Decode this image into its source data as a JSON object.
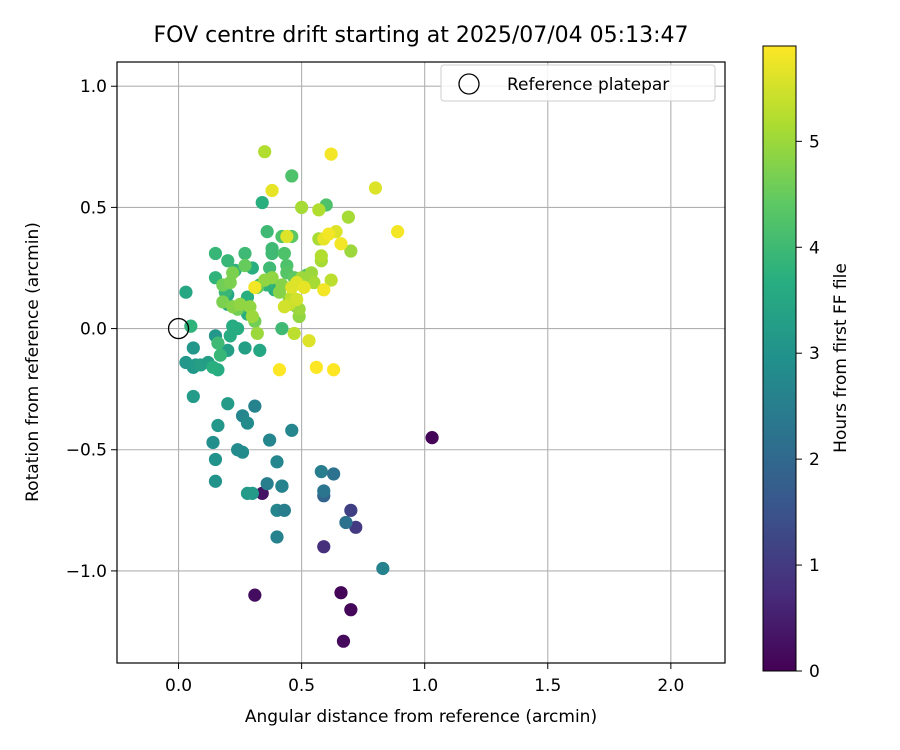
{
  "chart_data": {
    "type": "scatter",
    "title": "FOV centre drift starting at 2025/07/04 05:13:47",
    "xlabel": "Angular distance from reference (arcmin)",
    "ylabel": "Rotation from reference (arcmin)",
    "xlim": [
      -0.25,
      2.22
    ],
    "ylim": [
      -1.38,
      1.1
    ],
    "xticks": [
      0.0,
      0.5,
      1.0,
      1.5,
      2.0
    ],
    "xtick_labels": [
      "0.0",
      "0.5",
      "1.0",
      "1.5",
      "2.0"
    ],
    "yticks": [
      -1.0,
      -0.5,
      0.0,
      0.5,
      1.0
    ],
    "ytick_labels": [
      "−1.0",
      "−0.5",
      "0.0",
      "0.5",
      "1.0"
    ],
    "grid": true,
    "legend": {
      "label": "Reference platepar",
      "placement": "top-right",
      "marker": "hollow-circle"
    },
    "reference_point": {
      "x": 0.0,
      "y": 0.0
    },
    "colorbar": {
      "label": "Hours from first FF file",
      "colormap": "viridis",
      "range": [
        0,
        5.9
      ],
      "ticks": [
        0,
        1,
        2,
        3,
        4,
        5
      ],
      "tick_labels": [
        "0",
        "1",
        "2",
        "3",
        "4",
        "5"
      ]
    },
    "series": [
      {
        "values": [
          {
            "x": 1.03,
            "y": -0.45,
            "h": 0.05
          },
          {
            "x": 0.66,
            "y": -1.09,
            "h": 0.05
          },
          {
            "x": 0.7,
            "y": -1.16,
            "h": 0.1
          },
          {
            "x": 0.67,
            "y": -1.29,
            "h": 0.15
          },
          {
            "x": 0.31,
            "y": -1.1,
            "h": 0.2
          },
          {
            "x": 0.34,
            "y": -0.68,
            "h": 0.3
          },
          {
            "x": 0.59,
            "y": -0.9,
            "h": 0.8
          },
          {
            "x": 0.72,
            "y": -0.82,
            "h": 1.0
          },
          {
            "x": 0.7,
            "y": -0.75,
            "h": 1.1
          },
          {
            "x": 0.59,
            "y": -0.69,
            "h": 1.9
          },
          {
            "x": 0.68,
            "y": -0.8,
            "h": 2.2
          },
          {
            "x": 0.59,
            "y": -0.67,
            "h": 2.3
          },
          {
            "x": 0.63,
            "y": -0.6,
            "h": 2.2
          },
          {
            "x": 0.58,
            "y": -0.59,
            "h": 2.5
          },
          {
            "x": 0.83,
            "y": -0.99,
            "h": 2.6
          },
          {
            "x": 0.4,
            "y": -0.86,
            "h": 2.6
          },
          {
            "x": 0.4,
            "y": -0.75,
            "h": 2.7
          },
          {
            "x": 0.43,
            "y": -0.75,
            "h": 2.5
          },
          {
            "x": 0.42,
            "y": -0.65,
            "h": 2.4
          },
          {
            "x": 0.36,
            "y": -0.64,
            "h": 2.5
          },
          {
            "x": 0.42,
            "y": -0.65,
            "h": 2.6
          },
          {
            "x": 0.4,
            "y": -0.55,
            "h": 2.7
          },
          {
            "x": 0.37,
            "y": -0.46,
            "h": 2.7
          },
          {
            "x": 0.46,
            "y": -0.42,
            "h": 2.7
          },
          {
            "x": 0.31,
            "y": -0.32,
            "h": 2.6
          },
          {
            "x": 0.26,
            "y": -0.36,
            "h": 2.7
          },
          {
            "x": 0.28,
            "y": -0.39,
            "h": 2.8
          },
          {
            "x": 0.24,
            "y": -0.5,
            "h": 2.8
          },
          {
            "x": 0.26,
            "y": -0.51,
            "h": 2.8
          },
          {
            "x": 0.28,
            "y": -0.68,
            "h": 3.2
          },
          {
            "x": 0.3,
            "y": -0.68,
            "h": 3.2
          },
          {
            "x": 0.14,
            "y": -0.47,
            "h": 2.9
          },
          {
            "x": 0.15,
            "y": -0.54,
            "h": 3.0
          },
          {
            "x": 0.15,
            "y": -0.63,
            "h": 3.0
          },
          {
            "x": 0.16,
            "y": -0.4,
            "h": 3.1
          },
          {
            "x": 0.2,
            "y": -0.31,
            "h": 3.2
          },
          {
            "x": 0.06,
            "y": -0.28,
            "h": 3.2
          },
          {
            "x": 0.03,
            "y": -0.14,
            "h": 3.1
          },
          {
            "x": 0.06,
            "y": -0.16,
            "h": 3.1
          },
          {
            "x": 0.07,
            "y": -0.15,
            "h": 3.2
          },
          {
            "x": 0.09,
            "y": -0.15,
            "h": 3.3
          },
          {
            "x": 0.12,
            "y": -0.14,
            "h": 3.3
          },
          {
            "x": 0.06,
            "y": -0.08,
            "h": 3.1
          },
          {
            "x": 0.15,
            "y": -0.03,
            "h": 3.1
          },
          {
            "x": 0.2,
            "y": -0.09,
            "h": 3.3
          },
          {
            "x": 0.27,
            "y": -0.08,
            "h": 3.3
          },
          {
            "x": 0.33,
            "y": -0.09,
            "h": 3.5
          },
          {
            "x": 0.21,
            "y": -0.03,
            "h": 3.6
          },
          {
            "x": 0.16,
            "y": -0.17,
            "h": 3.6
          },
          {
            "x": 0.14,
            "y": -0.16,
            "h": 3.7
          },
          {
            "x": 0.17,
            "y": -0.11,
            "h": 3.9
          },
          {
            "x": 0.16,
            "y": -0.06,
            "h": 4.0
          },
          {
            "x": 0.03,
            "y": 0.15,
            "h": 3.5
          },
          {
            "x": 0.05,
            "y": 0.01,
            "h": 3.8
          },
          {
            "x": 0.2,
            "y": 0.14,
            "h": 3.5
          },
          {
            "x": 0.2,
            "y": 0.1,
            "h": 3.5
          },
          {
            "x": 0.22,
            "y": 0.01,
            "h": 3.6
          },
          {
            "x": 0.24,
            "y": 0.0,
            "h": 3.6
          },
          {
            "x": 0.28,
            "y": 0.06,
            "h": 3.7
          },
          {
            "x": 0.28,
            "y": 0.13,
            "h": 3.7
          },
          {
            "x": 0.3,
            "y": 0.25,
            "h": 3.7
          },
          {
            "x": 0.23,
            "y": 0.24,
            "h": 3.8
          },
          {
            "x": 0.15,
            "y": 0.21,
            "h": 3.8
          },
          {
            "x": 0.19,
            "y": 0.15,
            "h": 3.9
          },
          {
            "x": 0.15,
            "y": 0.31,
            "h": 3.9
          },
          {
            "x": 0.2,
            "y": 0.28,
            "h": 3.9
          },
          {
            "x": 0.27,
            "y": 0.31,
            "h": 4.0
          },
          {
            "x": 0.25,
            "y": 0.09,
            "h": 4.0
          },
          {
            "x": 0.34,
            "y": 0.52,
            "h": 3.7
          },
          {
            "x": 0.39,
            "y": 0.16,
            "h": 3.7
          },
          {
            "x": 0.36,
            "y": 0.18,
            "h": 3.8
          },
          {
            "x": 0.33,
            "y": 0.18,
            "h": 3.9
          },
          {
            "x": 0.37,
            "y": 0.25,
            "h": 4.0
          },
          {
            "x": 0.38,
            "y": 0.31,
            "h": 4.0
          },
          {
            "x": 0.38,
            "y": 0.33,
            "h": 4.0
          },
          {
            "x": 0.36,
            "y": 0.4,
            "h": 4.0
          },
          {
            "x": 0.42,
            "y": 0.38,
            "h": 4.2
          },
          {
            "x": 0.43,
            "y": 0.31,
            "h": 4.2
          },
          {
            "x": 0.44,
            "y": 0.26,
            "h": 4.2
          },
          {
            "x": 0.44,
            "y": 0.23,
            "h": 4.3
          },
          {
            "x": 0.42,
            "y": 0.0,
            "h": 4.0
          },
          {
            "x": 0.48,
            "y": 0.09,
            "h": 4.5
          },
          {
            "x": 0.46,
            "y": 0.63,
            "h": 4.2
          },
          {
            "x": 0.6,
            "y": 0.51,
            "h": 4.2
          },
          {
            "x": 0.52,
            "y": 0.22,
            "h": 4.3
          },
          {
            "x": 0.47,
            "y": 0.21,
            "h": 4.4
          },
          {
            "x": 0.46,
            "y": 0.38,
            "h": 4.4
          },
          {
            "x": 0.27,
            "y": 0.26,
            "h": 4.5
          },
          {
            "x": 0.32,
            "y": 0.17,
            "h": 4.5
          },
          {
            "x": 0.31,
            "y": 0.03,
            "h": 4.6
          },
          {
            "x": 0.24,
            "y": 0.08,
            "h": 4.6
          },
          {
            "x": 0.22,
            "y": 0.23,
            "h": 4.7
          },
          {
            "x": 0.18,
            "y": 0.18,
            "h": 4.6
          },
          {
            "x": 0.21,
            "y": 0.19,
            "h": 4.7
          },
          {
            "x": 0.18,
            "y": 0.11,
            "h": 4.7
          },
          {
            "x": 0.22,
            "y": 0.09,
            "h": 4.8
          },
          {
            "x": 0.25,
            "y": 0.1,
            "h": 4.9
          },
          {
            "x": 0.29,
            "y": 0.09,
            "h": 4.9
          },
          {
            "x": 0.3,
            "y": 0.05,
            "h": 5.0
          },
          {
            "x": 0.32,
            "y": -0.02,
            "h": 5.0
          },
          {
            "x": 0.35,
            "y": 0.2,
            "h": 4.9
          },
          {
            "x": 0.38,
            "y": 0.21,
            "h": 4.9
          },
          {
            "x": 0.41,
            "y": 0.15,
            "h": 4.8
          },
          {
            "x": 0.42,
            "y": 0.18,
            "h": 4.8
          },
          {
            "x": 0.45,
            "y": 0.12,
            "h": 4.9
          },
          {
            "x": 0.49,
            "y": 0.05,
            "h": 4.9
          },
          {
            "x": 0.49,
            "y": 0.08,
            "h": 5.0
          },
          {
            "x": 0.5,
            "y": 0.21,
            "h": 5.0
          },
          {
            "x": 0.54,
            "y": 0.23,
            "h": 5.0
          },
          {
            "x": 0.55,
            "y": 0.19,
            "h": 5.1
          },
          {
            "x": 0.58,
            "y": 0.28,
            "h": 5.1
          },
          {
            "x": 0.58,
            "y": 0.3,
            "h": 5.2
          },
          {
            "x": 0.57,
            "y": 0.37,
            "h": 5.1
          },
          {
            "x": 0.57,
            "y": 0.49,
            "h": 5.2
          },
          {
            "x": 0.5,
            "y": 0.5,
            "h": 5.1
          },
          {
            "x": 0.35,
            "y": 0.73,
            "h": 5.2
          },
          {
            "x": 0.7,
            "y": 0.32,
            "h": 5.0
          },
          {
            "x": 0.69,
            "y": 0.46,
            "h": 5.1
          },
          {
            "x": 0.62,
            "y": 0.2,
            "h": 5.3
          },
          {
            "x": 0.46,
            "y": 0.13,
            "h": 5.3
          },
          {
            "x": 0.47,
            "y": -0.02,
            "h": 5.3
          },
          {
            "x": 0.45,
            "y": 0.1,
            "h": 5.4
          },
          {
            "x": 0.43,
            "y": 0.09,
            "h": 5.5
          },
          {
            "x": 0.48,
            "y": 0.12,
            "h": 5.5
          },
          {
            "x": 0.46,
            "y": 0.17,
            "h": 5.6
          },
          {
            "x": 0.48,
            "y": 0.19,
            "h": 5.6
          },
          {
            "x": 0.51,
            "y": 0.17,
            "h": 5.7
          },
          {
            "x": 0.44,
            "y": 0.38,
            "h": 5.6
          },
          {
            "x": 0.38,
            "y": 0.57,
            "h": 5.7
          },
          {
            "x": 0.31,
            "y": 0.17,
            "h": 5.8
          },
          {
            "x": 0.53,
            "y": -0.05,
            "h": 5.6
          },
          {
            "x": 0.41,
            "y": -0.17,
            "h": 5.9
          },
          {
            "x": 0.56,
            "y": -0.16,
            "h": 5.9
          },
          {
            "x": 0.63,
            "y": -0.17,
            "h": 5.9
          },
          {
            "x": 0.59,
            "y": 0.16,
            "h": 5.8
          },
          {
            "x": 0.59,
            "y": 0.37,
            "h": 5.7
          },
          {
            "x": 0.64,
            "y": 0.4,
            "h": 5.6
          },
          {
            "x": 0.66,
            "y": 0.35,
            "h": 5.8
          },
          {
            "x": 0.62,
            "y": 0.72,
            "h": 5.8
          },
          {
            "x": 0.8,
            "y": 0.58,
            "h": 5.6
          },
          {
            "x": 0.89,
            "y": 0.4,
            "h": 5.8
          },
          {
            "x": 0.61,
            "y": 0.39,
            "h": 5.8
          }
        ]
      }
    ]
  }
}
